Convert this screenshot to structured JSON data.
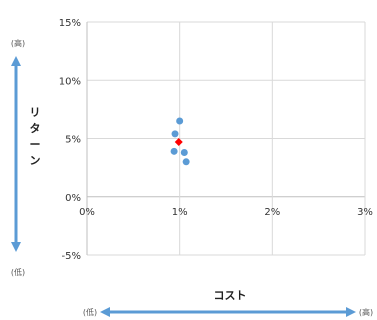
{
  "chart_data": {
    "type": "scatter",
    "title": "",
    "xlabel": "コスト",
    "ylabel": "リターン",
    "xlim": [
      0,
      3
    ],
    "ylim": [
      -5,
      15
    ],
    "x_ticks": [
      "0%",
      "1%",
      "2%",
      "3%"
    ],
    "y_ticks": [
      "15%",
      "10%",
      "5%",
      "0%",
      "-5%"
    ],
    "x_tick_values": [
      0,
      1,
      2,
      3
    ],
    "y_tick_values": [
      15,
      10,
      5,
      0,
      -5
    ],
    "grid": true,
    "legend": "none",
    "x_low_label": "(低)",
    "x_high_label": "(高)",
    "y_low_label": "(低)",
    "y_high_label": "(高)",
    "series": [
      {
        "color": "#5B9BD5",
        "points": [
          {
            "x": 1.0,
            "y": 6.5
          },
          {
            "x": 0.95,
            "y": 5.4
          },
          {
            "x": 1.05,
            "y": 3.8
          },
          {
            "x": 1.07,
            "y": 3.0
          },
          {
            "x": 0.94,
            "y": 3.9
          }
        ]
      },
      {
        "color": "#FF0000",
        "points": [
          {
            "x": 0.99,
            "y": 4.7
          }
        ]
      }
    ],
    "colors": {
      "arrow": "#5B9BD5",
      "grid": "#D9D9D9",
      "axis": "#BFBFBF"
    }
  }
}
